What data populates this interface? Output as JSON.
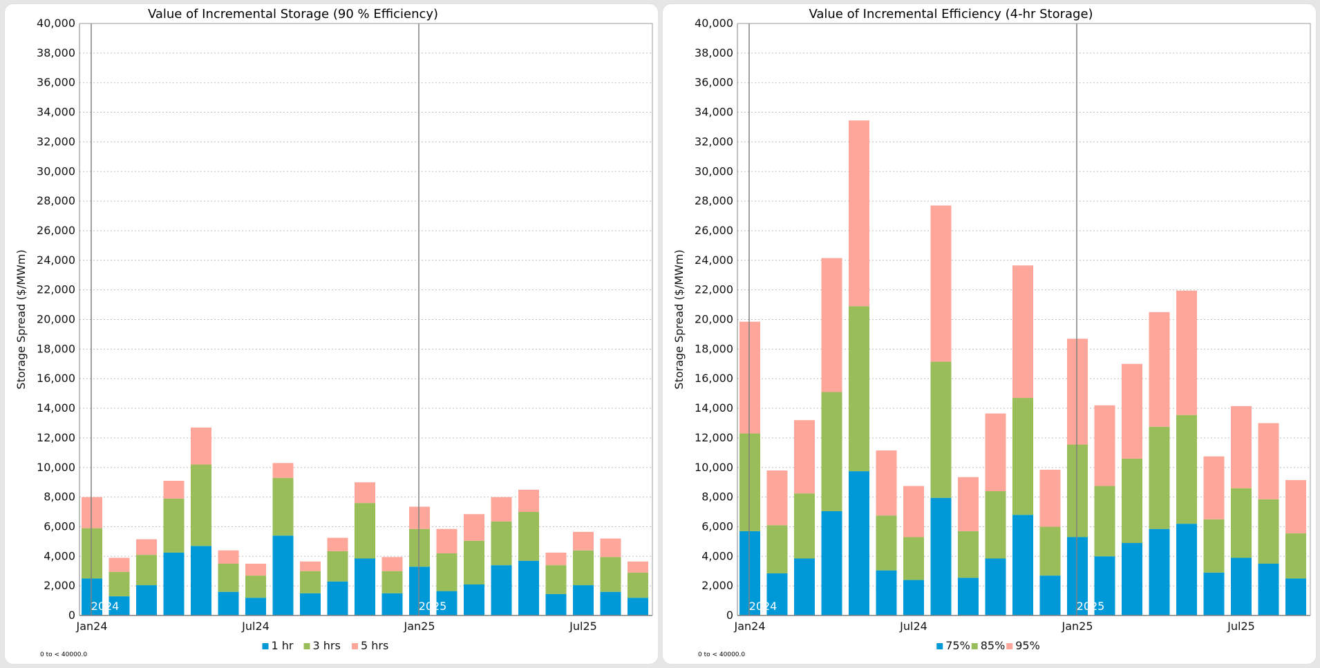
{
  "chart_data": [
    {
      "type": "bar",
      "stacked": true,
      "title": "Value of Incremental Storage (90 % Efficiency)",
      "ylabel": "Storage Spread ($/MWm)",
      "ylim": [
        0,
        40000
      ],
      "yticks": [
        "0",
        "2,000",
        "4,000",
        "6,000",
        "8,000",
        "10,000",
        "12,000",
        "14,000",
        "16,000",
        "18,000",
        "20,000",
        "22,000",
        "24,000",
        "26,000",
        "28,000",
        "30,000",
        "32,000",
        "34,000",
        "36,000",
        "38,000",
        "40,000"
      ],
      "categories": [
        "Jan24",
        "Feb24",
        "Mar24",
        "Apr24",
        "May24",
        "Jun24",
        "Jul24",
        "Aug24",
        "Sep24",
        "Oct24",
        "Nov24",
        "Dec24",
        "Jan25",
        "Feb25",
        "Mar25",
        "Apr25",
        "May25",
        "Jun25",
        "Jul25",
        "Aug25",
        "Sep25"
      ],
      "xtick_labels": [
        {
          "index": 0,
          "label": "Jan24"
        },
        {
          "index": 6,
          "label": "Jul24"
        },
        {
          "index": 12,
          "label": "Jan25"
        },
        {
          "index": 18,
          "label": "Jul25"
        }
      ],
      "year_markers": [
        {
          "index": 0,
          "label": "2024"
        },
        {
          "index": 12,
          "label": "2025"
        }
      ],
      "series": [
        {
          "name": "1 hr",
          "color": "#0099d8",
          "values": [
            2500,
            1300,
            2050,
            4250,
            4700,
            1600,
            1200,
            5400,
            1500,
            2300,
            3850,
            1500,
            3300,
            1650,
            2100,
            3400,
            3700,
            1450,
            2050,
            1600,
            1200
          ]
        },
        {
          "name": "3 hrs",
          "color": "#99bd58",
          "values": [
            3400,
            1650,
            2050,
            3650,
            5500,
            1900,
            1500,
            3900,
            1500,
            2050,
            3750,
            1500,
            2550,
            2550,
            2950,
            2950,
            3300,
            1950,
            2350,
            2350,
            1700
          ]
        },
        {
          "name": "5 hrs",
          "color": "#ffa69a",
          "values": [
            2100,
            950,
            1050,
            1200,
            2500,
            900,
            800,
            1000,
            650,
            900,
            1400,
            950,
            1500,
            1650,
            1800,
            1650,
            1500,
            850,
            1250,
            1250,
            750
          ]
        }
      ],
      "grid": true,
      "legend": "bottom-center",
      "range_note": "0 to < 40000.0"
    },
    {
      "type": "bar",
      "stacked": true,
      "title": "Value of Incremental Efficiency (4-hr Storage)",
      "ylabel": "Storage Spread ($/MWm)",
      "ylim": [
        0,
        40000
      ],
      "yticks": [
        "0",
        "2,000",
        "4,000",
        "6,000",
        "8,000",
        "10,000",
        "12,000",
        "14,000",
        "16,000",
        "18,000",
        "20,000",
        "22,000",
        "24,000",
        "26,000",
        "28,000",
        "30,000",
        "32,000",
        "34,000",
        "36,000",
        "38,000",
        "40,000"
      ],
      "categories": [
        "Jan24",
        "Feb24",
        "Mar24",
        "Apr24",
        "May24",
        "Jun24",
        "Jul24",
        "Aug24",
        "Sep24",
        "Oct24",
        "Nov24",
        "Dec24",
        "Jan25",
        "Feb25",
        "Mar25",
        "Apr25",
        "May25",
        "Jun25",
        "Jul25",
        "Aug25",
        "Sep25"
      ],
      "xtick_labels": [
        {
          "index": 0,
          "label": "Jan24"
        },
        {
          "index": 6,
          "label": "Jul24"
        },
        {
          "index": 12,
          "label": "Jan25"
        },
        {
          "index": 18,
          "label": "Jul25"
        }
      ],
      "year_markers": [
        {
          "index": 0,
          "label": "2024"
        },
        {
          "index": 12,
          "label": "2025"
        }
      ],
      "series": [
        {
          "name": "75%",
          "color": "#0099d8",
          "values": [
            5700,
            2850,
            3850,
            7050,
            9750,
            3050,
            2400,
            7950,
            2550,
            3850,
            6800,
            2700,
            5300,
            4000,
            4900,
            5850,
            6200,
            2900,
            3900,
            3500,
            2500
          ]
        },
        {
          "name": "85%",
          "color": "#99bd58",
          "values": [
            6600,
            3250,
            4400,
            8050,
            11150,
            3700,
            2900,
            9200,
            3150,
            4550,
            7900,
            3300,
            6250,
            4750,
            5700,
            6900,
            7350,
            3600,
            4700,
            4350,
            3050
          ]
        },
        {
          "name": "95%",
          "color": "#ffa69a",
          "values": [
            7550,
            3700,
            4950,
            9050,
            12550,
            4400,
            3450,
            10550,
            3650,
            5250,
            8950,
            3850,
            7150,
            5450,
            6400,
            7750,
            8400,
            4250,
            5550,
            5150,
            3600
          ]
        }
      ],
      "grid": true,
      "legend": "bottom-center",
      "range_note": "0 to < 40000.0"
    }
  ]
}
